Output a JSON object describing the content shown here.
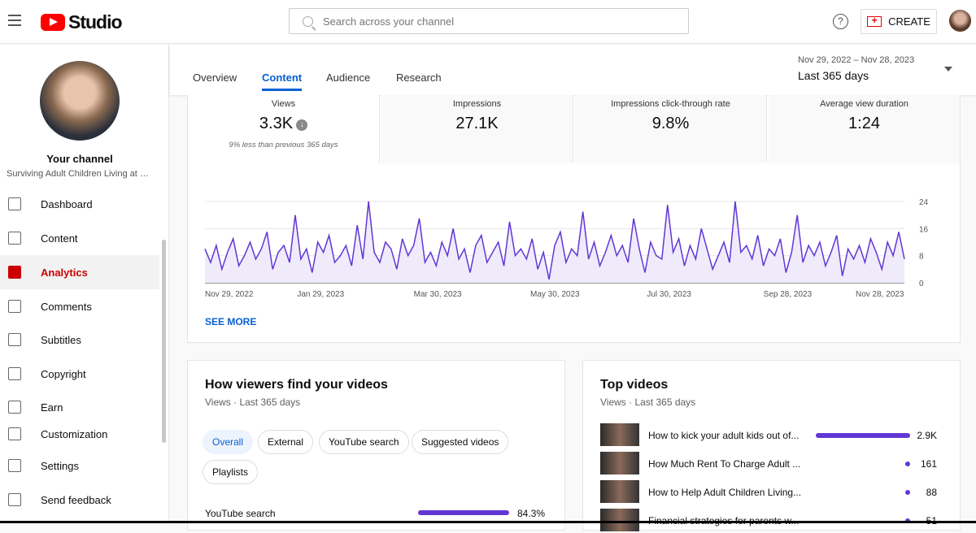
{
  "header": {
    "logo_text": "Studio",
    "search_placeholder": "Search across your channel",
    "help": "?",
    "create_label": "CREATE"
  },
  "sidebar": {
    "channel_label": "Your channel",
    "channel_name": "Surviving Adult Children Living at H...",
    "items": [
      {
        "label": "Dashboard"
      },
      {
        "label": "Content"
      },
      {
        "label": "Analytics",
        "active": true
      },
      {
        "label": "Comments"
      },
      {
        "label": "Subtitles"
      },
      {
        "label": "Copyright"
      },
      {
        "label": "Earn"
      },
      {
        "label": "Customization"
      },
      {
        "label": "Settings"
      },
      {
        "label": "Send feedback"
      }
    ]
  },
  "tabs": [
    {
      "label": "Overview"
    },
    {
      "label": "Content",
      "active": true
    },
    {
      "label": "Audience"
    },
    {
      "label": "Research"
    }
  ],
  "date_range": {
    "range": "Nov 29, 2022 – Nov 28, 2023",
    "label": "Last 365 days"
  },
  "metrics": [
    {
      "label": "Views",
      "value": "3.3K",
      "note": "9% less than previous 365 days",
      "trend": "down"
    },
    {
      "label": "Impressions",
      "value": "27.1K"
    },
    {
      "label": "Impressions click-through rate",
      "value": "9.8%"
    },
    {
      "label": "Average view duration",
      "value": "1:24"
    }
  ],
  "chart_data": {
    "type": "area",
    "x_start": "Nov 29, 2022",
    "x_end": "Nov 28, 2023",
    "ylim": [
      0,
      24
    ],
    "yticks": [
      "24",
      "16",
      "8",
      "0"
    ],
    "xticks": [
      "Nov 29, 2022",
      "Jan 29, 2023",
      "Mar 30, 2023",
      "May 30, 2023",
      "Jul 30, 2023",
      "Sep 28, 2023",
      "Nov 28, 2023"
    ],
    "color": "#6237d4",
    "values": [
      10,
      6,
      11,
      4,
      9,
      13,
      5,
      8,
      12,
      7,
      10,
      15,
      4,
      9,
      11,
      6,
      20,
      7,
      10,
      3,
      12,
      9,
      14,
      6,
      8,
      11,
      5,
      17,
      7,
      24,
      9,
      6,
      12,
      10,
      4,
      13,
      8,
      11,
      19,
      6,
      9,
      5,
      12,
      8,
      16,
      7,
      10,
      3,
      11,
      14,
      6,
      9,
      12,
      5,
      18,
      8,
      10,
      7,
      13,
      4,
      9,
      1,
      11,
      15,
      6,
      10,
      8,
      21,
      7,
      12,
      5,
      9,
      14,
      8,
      11,
      6,
      19,
      10,
      3,
      12,
      8,
      7,
      23,
      9,
      13,
      5,
      11,
      7,
      16,
      10,
      4,
      8,
      12,
      6,
      24,
      9,
      11,
      7,
      14,
      5,
      10,
      8,
      13,
      3,
      9,
      20,
      6,
      11,
      8,
      12,
      5,
      9,
      14,
      2,
      10,
      7,
      11,
      6,
      13,
      9,
      4,
      12,
      8,
      15,
      7
    ],
    "see_more": "SEE MORE"
  },
  "traffic": {
    "title": "How viewers find your videos",
    "subtitle": "Views · Last 365 days",
    "chips": [
      {
        "label": "Overall",
        "active": true
      },
      {
        "label": "External"
      },
      {
        "label": "YouTube search"
      },
      {
        "label": "Suggested videos"
      },
      {
        "label": "Playlists"
      }
    ],
    "rows": [
      {
        "label": "YouTube search",
        "value": "84.3%",
        "fraction": 0.843
      }
    ]
  },
  "top_videos": {
    "title": "Top videos",
    "subtitle": "Views · Last 365 days",
    "rows": [
      {
        "title": "How to kick your adult kids out of...",
        "views": "2.9K",
        "fraction": 1
      },
      {
        "title": "How Much Rent To Charge Adult ...",
        "views": "161",
        "fraction": 0.055
      },
      {
        "title": "How to Help Adult Children Living...",
        "views": "88",
        "fraction": 0.03
      },
      {
        "title": "Financial strategies for parents w...",
        "views": "51",
        "fraction": 0.018
      }
    ]
  }
}
